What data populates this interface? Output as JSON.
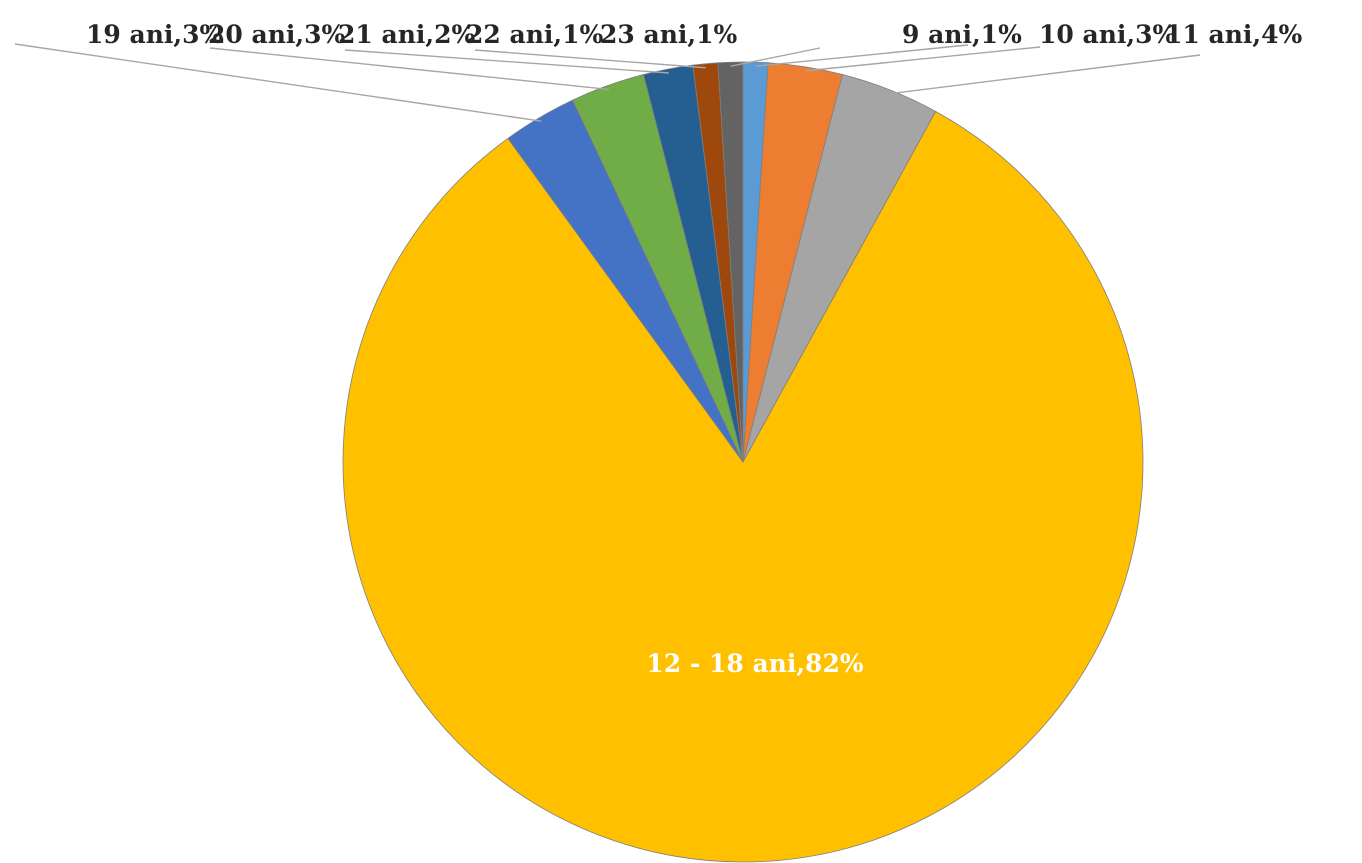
{
  "chart_data": {
    "type": "pie",
    "title": "",
    "slices": [
      {
        "category": "9 ani",
        "value": 1,
        "label": "9 ani,1%",
        "color": "#5B9BD5"
      },
      {
        "category": "10 ani",
        "value": 3,
        "label": "10 ani,3%",
        "color": "#ED7D31"
      },
      {
        "category": "11 ani",
        "value": 4,
        "label": "11 ani,4%",
        "color": "#A5A5A5"
      },
      {
        "category": "12 - 18 ani",
        "value": 82,
        "label": "12 - 18 ani,82%",
        "color": "#FFC000"
      },
      {
        "category": "19 ani",
        "value": 3,
        "label": "19 ani,3%",
        "color": "#4472C4"
      },
      {
        "category": "20 ani",
        "value": 3,
        "label": "20 ani,3%",
        "color": "#70AD47"
      },
      {
        "category": "21 ani",
        "value": 2,
        "label": "21 ani,2%",
        "color": "#255E91"
      },
      {
        "category": "22 ani",
        "value": 1,
        "label": "22 ani,1%",
        "color": "#9E480E"
      },
      {
        "category": "23 ani",
        "value": 1,
        "label": "23 ani,1%",
        "color": "#636363"
      }
    ],
    "legend": "none"
  }
}
